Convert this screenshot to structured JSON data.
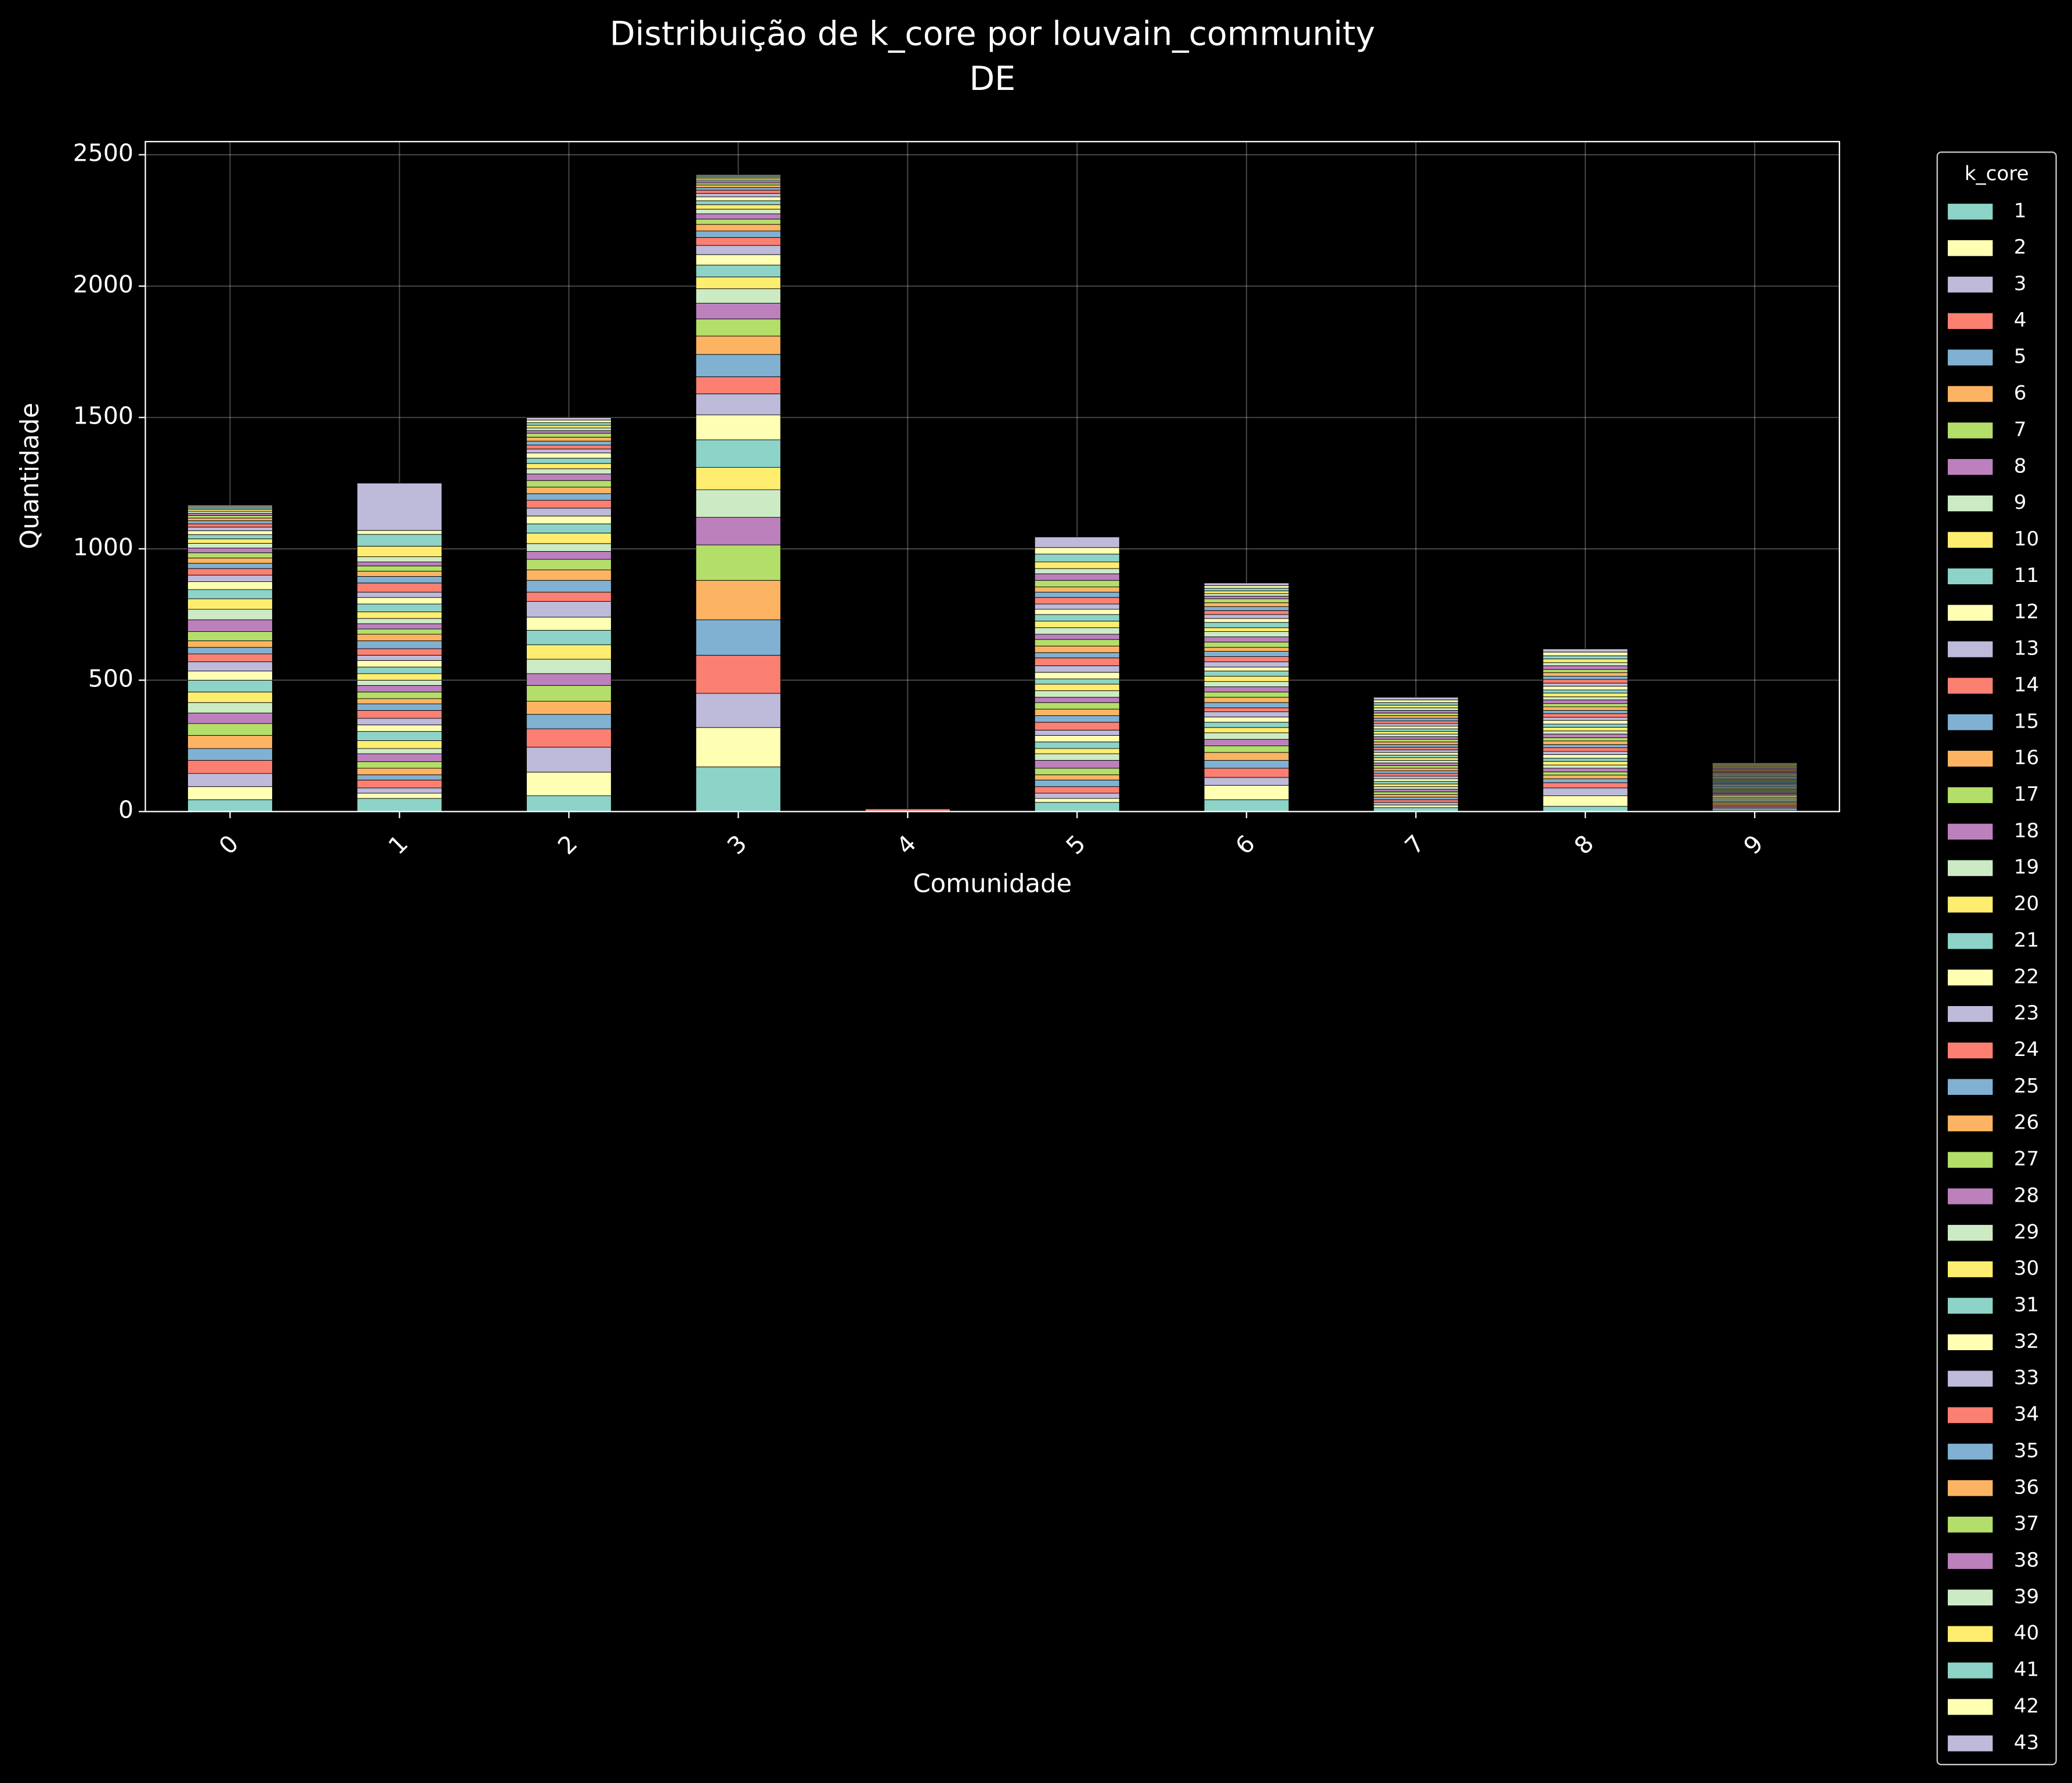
{
  "chart_data": {
    "type": "stacked_bar",
    "title": "Distribuição de k_core por louvain_community",
    "subtitle": "DE",
    "x_label": "Comunidade",
    "y_label": "Quantidade",
    "legend_title": "k_core",
    "legend_position": "outside-right",
    "grid": true,
    "categories": [
      "0",
      "1",
      "2",
      "3",
      "4",
      "5",
      "6",
      "7",
      "8",
      "9"
    ],
    "ylim": [
      0,
      2550
    ],
    "yticks": [
      0,
      500,
      1000,
      1500,
      2000,
      2500
    ],
    "series": [
      {
        "name": "1",
        "color": "#8dd3c7",
        "values": [
          45,
          50,
          60,
          170,
          0,
          35,
          45,
          15,
          20,
          5
        ]
      },
      {
        "name": "2",
        "color": "#ffffb3",
        "values": [
          50,
          20,
          90,
          150,
          0,
          15,
          55,
          10,
          40,
          5
        ]
      },
      {
        "name": "3",
        "color": "#bebada",
        "values": [
          50,
          20,
          95,
          130,
          0,
          20,
          30,
          10,
          30,
          5
        ]
      },
      {
        "name": "4",
        "color": "#fb8072",
        "values": [
          50,
          30,
          70,
          145,
          10,
          25,
          35,
          10,
          20,
          5
        ]
      },
      {
        "name": "5",
        "color": "#80b1d3",
        "values": [
          45,
          20,
          55,
          135,
          0,
          25,
          30,
          10,
          15,
          5
        ]
      },
      {
        "name": "6",
        "color": "#fdb462",
        "values": [
          50,
          25,
          50,
          150,
          0,
          20,
          30,
          10,
          14,
          5
        ]
      },
      {
        "name": "7",
        "color": "#b3de69",
        "values": [
          45,
          25,
          60,
          135,
          0,
          25,
          25,
          10,
          12,
          5
        ]
      },
      {
        "name": "8",
        "color": "#bc80bd",
        "values": [
          40,
          30,
          45,
          105,
          0,
          30,
          25,
          10,
          14,
          5
        ]
      },
      {
        "name": "9",
        "color": "#ccebc5",
        "values": [
          40,
          20,
          55,
          105,
          0,
          25,
          25,
          10,
          12,
          5
        ]
      },
      {
        "name": "10",
        "color": "#ffed6f",
        "values": [
          40,
          30,
          55,
          85,
          0,
          20,
          20,
          10,
          14,
          5
        ]
      },
      {
        "name": "11",
        "color": "#8dd3c7",
        "values": [
          45,
          35,
          55,
          105,
          0,
          25,
          20,
          10,
          12,
          5
        ]
      },
      {
        "name": "12",
        "color": "#ffffb3",
        "values": [
          35,
          25,
          50,
          95,
          0,
          25,
          20,
          10,
          14,
          5
        ]
      },
      {
        "name": "13",
        "color": "#bebada",
        "values": [
          35,
          25,
          60,
          80,
          0,
          20,
          20,
          10,
          12,
          5
        ]
      },
      {
        "name": "14",
        "color": "#fb8072",
        "values": [
          30,
          30,
          35,
          65,
          0,
          30,
          15,
          10,
          14,
          4
        ]
      },
      {
        "name": "15",
        "color": "#80b1d3",
        "values": [
          25,
          25,
          45,
          85,
          0,
          25,
          20,
          10,
          12,
          4
        ]
      },
      {
        "name": "16",
        "color": "#fdb462",
        "values": [
          25,
          20,
          40,
          70,
          0,
          25,
          20,
          10,
          14,
          4
        ]
      },
      {
        "name": "17",
        "color": "#b3de69",
        "values": [
          35,
          25,
          40,
          65,
          0,
          25,
          20,
          10,
          12,
          4
        ]
      },
      {
        "name": "18",
        "color": "#bc80bd",
        "values": [
          45,
          25,
          30,
          60,
          0,
          20,
          20,
          10,
          14,
          4
        ]
      },
      {
        "name": "19",
        "color": "#ccebc5",
        "values": [
          40,
          20,
          30,
          55,
          0,
          25,
          20,
          10,
          12,
          4
        ]
      },
      {
        "name": "20",
        "color": "#ffed6f",
        "values": [
          40,
          25,
          40,
          45,
          0,
          25,
          20,
          10,
          14,
          4
        ]
      },
      {
        "name": "21",
        "color": "#8dd3c7",
        "values": [
          35,
          25,
          35,
          45,
          0,
          20,
          20,
          10,
          12,
          4
        ]
      },
      {
        "name": "22",
        "color": "#ffffb3",
        "values": [
          30,
          25,
          30,
          40,
          0,
          25,
          15,
          10,
          14,
          4
        ]
      },
      {
        "name": "23",
        "color": "#bebada",
        "values": [
          25,
          20,
          30,
          35,
          0,
          25,
          20,
          10,
          12,
          4
        ]
      },
      {
        "name": "24",
        "color": "#fb8072",
        "values": [
          25,
          25,
          30,
          30,
          0,
          30,
          20,
          10,
          14,
          4
        ]
      },
      {
        "name": "25",
        "color": "#80b1d3",
        "values": [
          20,
          30,
          25,
          25,
          0,
          20,
          20,
          10,
          12,
          4
        ]
      },
      {
        "name": "26",
        "color": "#fdb462",
        "values": [
          20,
          25,
          25,
          25,
          0,
          25,
          15,
          10,
          14,
          4
        ]
      },
      {
        "name": "27",
        "color": "#b3de69",
        "values": [
          20,
          20,
          25,
          20,
          0,
          25,
          20,
          10,
          12,
          4
        ]
      },
      {
        "name": "28",
        "color": "#bc80bd",
        "values": [
          18,
          20,
          25,
          20,
          0,
          20,
          20,
          10,
          14,
          4
        ]
      },
      {
        "name": "29",
        "color": "#ccebc5",
        "values": [
          18,
          20,
          20,
          18,
          0,
          25,
          20,
          10,
          12,
          4
        ]
      },
      {
        "name": "30",
        "color": "#ffed6f",
        "values": [
          17,
          25,
          20,
          17,
          0,
          25,
          15,
          10,
          14,
          4
        ]
      },
      {
        "name": "31",
        "color": "#8dd3c7",
        "values": [
          16,
          30,
          20,
          15,
          0,
          25,
          20,
          10,
          12,
          4
        ]
      },
      {
        "name": "32",
        "color": "#ffffb3",
        "values": [
          15,
          25,
          20,
          15,
          0,
          20,
          15,
          10,
          14,
          4
        ]
      },
      {
        "name": "33",
        "color": "#bebada",
        "values": [
          14,
          20,
          15,
          13,
          0,
          20,
          15,
          10,
          12,
          4
        ]
      },
      {
        "name": "34",
        "color": "#fb8072",
        "values": [
          12,
          35,
          15,
          12,
          0,
          25,
          15,
          10,
          14,
          4
        ]
      },
      {
        "name": "35",
        "color": "#80b1d3",
        "values": [
          12,
          25,
          15,
          10,
          0,
          20,
          15,
          10,
          12,
          4
        ]
      },
      {
        "name": "36",
        "color": "#fdb462",
        "values": [
          10,
          20,
          15,
          10,
          0,
          20,
          15,
          10,
          14,
          4
        ]
      },
      {
        "name": "37",
        "color": "#b3de69",
        "values": [
          10,
          20,
          15,
          8,
          0,
          25,
          15,
          10,
          12,
          4
        ]
      },
      {
        "name": "38",
        "color": "#bc80bd",
        "values": [
          8,
          15,
          10,
          8,
          0,
          25,
          10,
          10,
          14,
          4
        ]
      },
      {
        "name": "39",
        "color": "#ccebc5",
        "values": [
          8,
          20,
          10,
          7,
          0,
          20,
          10,
          10,
          12,
          4
        ]
      },
      {
        "name": "40",
        "color": "#ffed6f",
        "values": [
          7,
          40,
          10,
          5,
          0,
          25,
          10,
          10,
          14,
          4
        ]
      },
      {
        "name": "41",
        "color": "#8dd3c7",
        "values": [
          6,
          45,
          10,
          5,
          0,
          30,
          10,
          10,
          12,
          4
        ]
      },
      {
        "name": "42",
        "color": "#ffffb3",
        "values": [
          5,
          15,
          10,
          4,
          0,
          25,
          10,
          10,
          14,
          4
        ]
      },
      {
        "name": "43",
        "color": "#bebada",
        "values": [
          5,
          180,
          10,
          3,
          0,
          40,
          10,
          10,
          12,
          4
        ]
      }
    ]
  }
}
